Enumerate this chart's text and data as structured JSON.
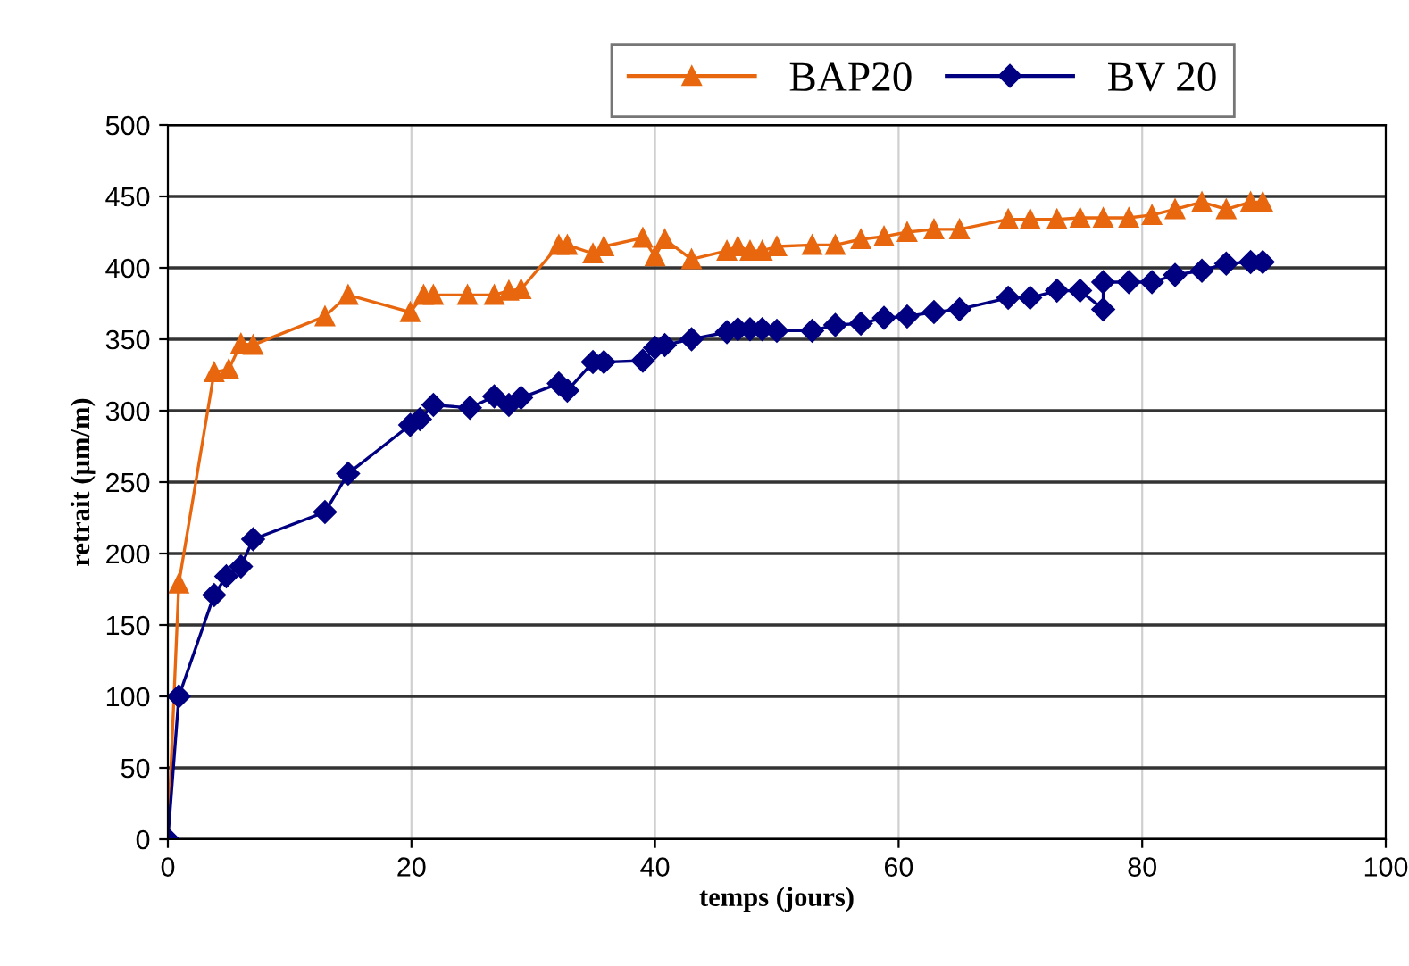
{
  "chart_data": {
    "type": "line",
    "xlabel": "temps (jours)",
    "ylabel": "retrait (µm/m)",
    "xlim": [
      0,
      100
    ],
    "xticks": [
      0,
      20,
      40,
      60,
      80,
      100
    ],
    "ylim": [
      0,
      500
    ],
    "yticks": [
      0,
      50,
      100,
      150,
      200,
      250,
      300,
      350,
      400,
      450,
      500
    ],
    "grid": true,
    "legend": "top",
    "line_style": "solid",
    "series": [
      {
        "name": "BAP20",
        "color": "#e8670e",
        "marker": "triangle",
        "x": [
          0,
          0.9,
          3.8,
          5,
          6,
          7,
          12.9,
          14.8,
          19.9,
          21,
          21.8,
          24.6,
          26.8,
          28,
          29,
          32.1,
          32.8,
          34.9,
          35.8,
          39,
          40,
          40.8,
          43,
          45.9,
          46.8,
          47.8,
          48.8,
          50,
          52.9,
          54.8,
          56.9,
          58.8,
          60.7,
          62.9,
          65,
          69,
          70.8,
          73,
          74.9,
          76.8,
          78.9,
          80.8,
          82.7,
          84.9,
          86.9,
          88.9,
          89.9
        ],
        "values": [
          0,
          179,
          327,
          329,
          347,
          346,
          366,
          381,
          369,
          381,
          381,
          381,
          381,
          384,
          385,
          416,
          416,
          410,
          415,
          421,
          408,
          420,
          406,
          412,
          415,
          412,
          412,
          415,
          416,
          416,
          420,
          422,
          425,
          427,
          427,
          434,
          434,
          434,
          435,
          435,
          435,
          437,
          441,
          446,
          441,
          446,
          446
        ]
      },
      {
        "name": "BV 20",
        "color": "#000080",
        "marker": "diamond",
        "x": [
          0,
          0.9,
          3.8,
          4.8,
          6,
          7,
          12.9,
          14.8,
          19.9,
          20.7,
          21.8,
          24.8,
          26.8,
          28,
          29,
          32.1,
          32.8,
          34.9,
          35.8,
          39,
          40,
          40.8,
          43,
          45.9,
          46.8,
          47.8,
          48.8,
          50,
          52.9,
          54.8,
          56.9,
          58.8,
          60.7,
          62.9,
          65,
          69,
          70.8,
          73,
          74.9,
          76.8,
          76.8,
          78.9,
          80.8,
          82.7,
          84.9,
          86.9,
          88.9,
          89.9
        ],
        "values": [
          0,
          100,
          171,
          184,
          191,
          210,
          229,
          256,
          290,
          294,
          304,
          302,
          310,
          304,
          309,
          319,
          314,
          334,
          334,
          335,
          344,
          346,
          350,
          355,
          357,
          357,
          357,
          356,
          356,
          360,
          361,
          365,
          366,
          369,
          371,
          379,
          379,
          384,
          384,
          371,
          390,
          390,
          390,
          395,
          398,
          403,
          404,
          404
        ]
      }
    ]
  }
}
